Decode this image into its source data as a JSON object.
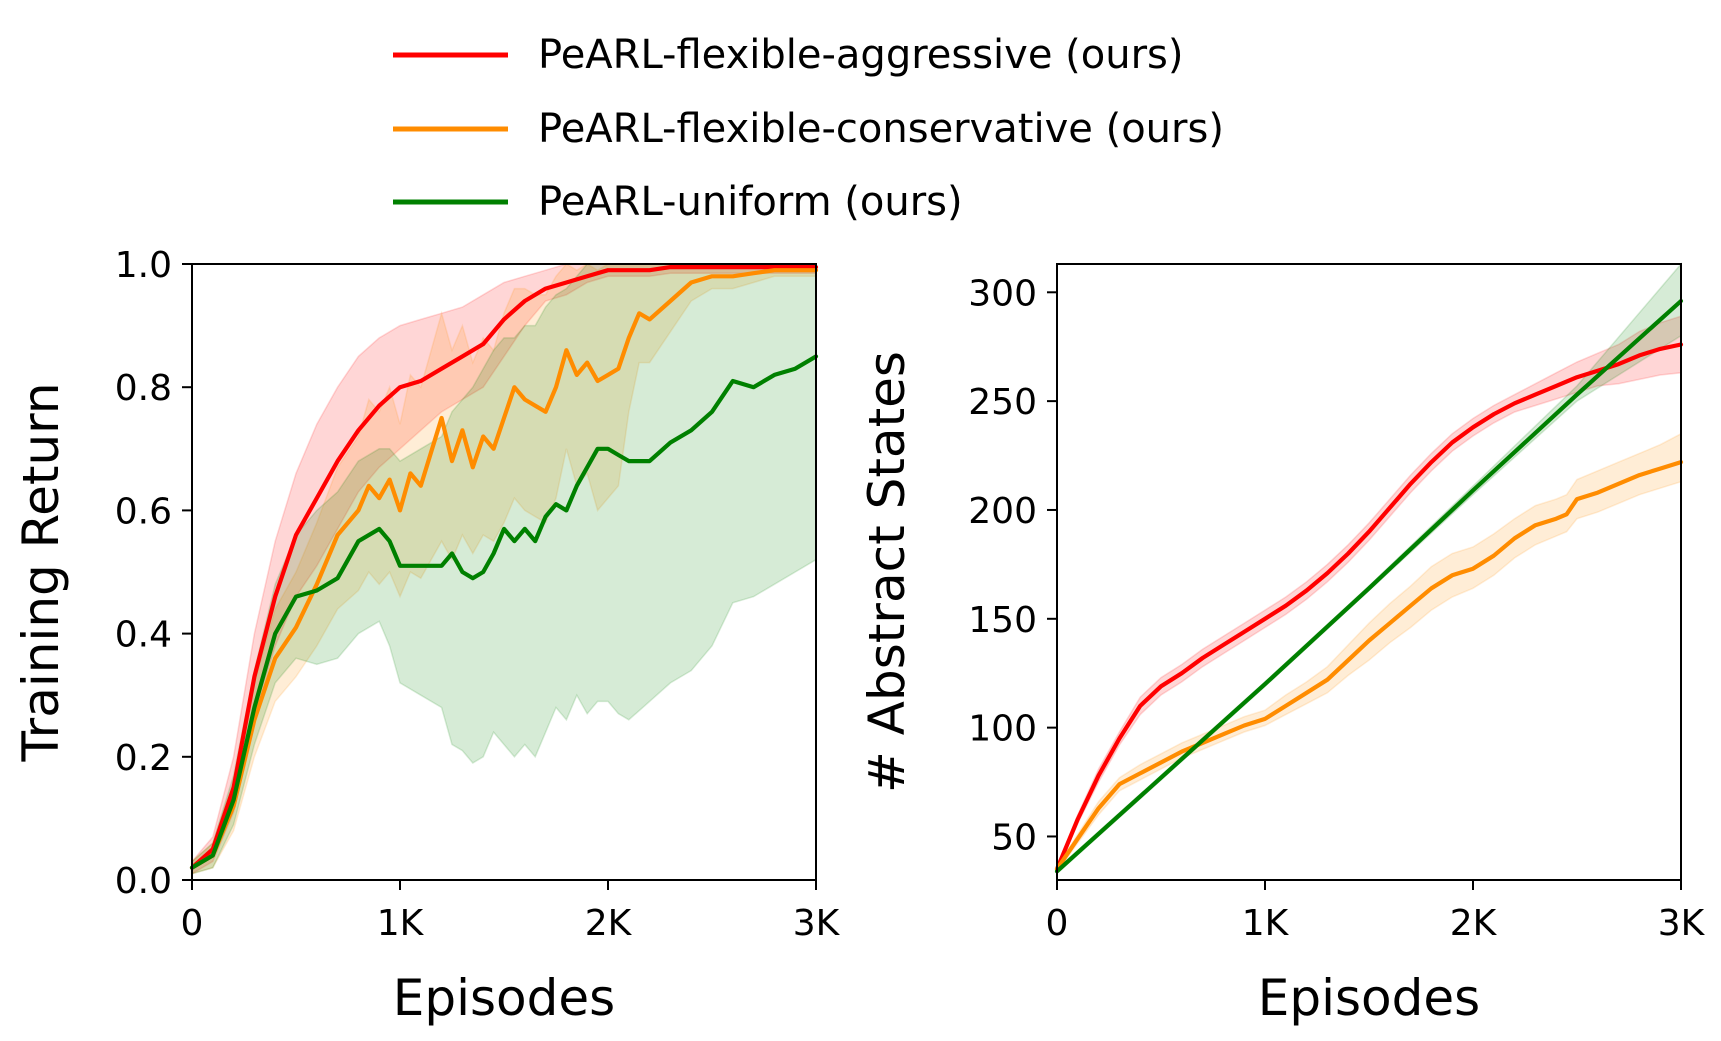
{
  "legend": {
    "placement": "top-center",
    "entries": [
      {
        "label": "PeARL-flexible-aggressive (ours)",
        "color": "#ff0000"
      },
      {
        "label": "PeARL-flexible-conservative (ours)",
        "color": "#ff8c00"
      },
      {
        "label": "PeARL-uniform (ours)",
        "color": "#008000"
      }
    ]
  },
  "chart_data": [
    {
      "type": "line",
      "xlabel": "Episodes",
      "ylabel": "Training Return",
      "xlim": [
        0,
        3000
      ],
      "ylim": [
        0,
        1.0
      ],
      "x_ticks": [
        {
          "value": 0,
          "label": "0"
        },
        {
          "value": 1000,
          "label": "1K"
        },
        {
          "value": 2000,
          "label": "2K"
        },
        {
          "value": 3000,
          "label": "3K"
        }
      ],
      "y_ticks": [
        {
          "value": 0,
          "label": "0.0"
        },
        {
          "value": 0.2,
          "label": "0.2"
        },
        {
          "value": 0.4,
          "label": "0.4"
        },
        {
          "value": 0.6,
          "label": "0.6"
        },
        {
          "value": 0.8,
          "label": "0.8"
        },
        {
          "value": 1.0,
          "label": "1.0"
        }
      ],
      "grid": false,
      "series": [
        {
          "name": "PeARL-flexible-aggressive (ours)",
          "color": "#ff0000",
          "x": [
            0,
            100,
            200,
            300,
            400,
            500,
            600,
            700,
            800,
            900,
            1000,
            1100,
            1200,
            1300,
            1400,
            1500,
            1600,
            1700,
            1800,
            1900,
            2000,
            2100,
            2200,
            2300,
            2400,
            2500,
            2600,
            2700,
            2800,
            2900,
            3000
          ],
          "y": [
            0.02,
            0.05,
            0.15,
            0.33,
            0.46,
            0.56,
            0.62,
            0.68,
            0.73,
            0.77,
            0.8,
            0.81,
            0.83,
            0.85,
            0.87,
            0.91,
            0.94,
            0.96,
            0.97,
            0.98,
            0.99,
            0.99,
            0.99,
            0.995,
            0.995,
            0.995,
            0.995,
            0.995,
            0.995,
            0.995,
            0.995
          ],
          "lower": [
            0.01,
            0.03,
            0.11,
            0.27,
            0.38,
            0.46,
            0.51,
            0.57,
            0.63,
            0.67,
            0.7,
            0.73,
            0.76,
            0.78,
            0.8,
            0.85,
            0.9,
            0.94,
            0.95,
            0.97,
            0.98,
            0.98,
            0.98,
            0.985,
            0.985,
            0.985,
            0.985,
            0.985,
            0.985,
            0.985,
            0.985
          ],
          "upper": [
            0.03,
            0.07,
            0.2,
            0.4,
            0.55,
            0.66,
            0.74,
            0.8,
            0.85,
            0.88,
            0.9,
            0.91,
            0.92,
            0.93,
            0.95,
            0.97,
            0.98,
            0.99,
            1.0,
            1.0,
            1.0,
            1.0,
            1.0,
            1.0,
            1.0,
            1.0,
            1.0,
            1.0,
            1.0,
            1.0,
            1.0
          ]
        },
        {
          "name": "PeARL-flexible-conservative (ours)",
          "color": "#ff8c00",
          "x": [
            0,
            100,
            200,
            300,
            400,
            500,
            600,
            700,
            800,
            850,
            900,
            950,
            1000,
            1050,
            1100,
            1200,
            1250,
            1300,
            1350,
            1400,
            1450,
            1500,
            1550,
            1600,
            1650,
            1700,
            1750,
            1800,
            1850,
            1900,
            1950,
            2000,
            2050,
            2100,
            2150,
            2200,
            2300,
            2400,
            2500,
            2600,
            2700,
            2800,
            2900,
            3000
          ],
          "y": [
            0.02,
            0.04,
            0.12,
            0.26,
            0.36,
            0.41,
            0.48,
            0.56,
            0.6,
            0.64,
            0.62,
            0.65,
            0.6,
            0.66,
            0.64,
            0.75,
            0.68,
            0.73,
            0.67,
            0.72,
            0.7,
            0.75,
            0.8,
            0.78,
            0.77,
            0.76,
            0.8,
            0.86,
            0.82,
            0.84,
            0.81,
            0.82,
            0.83,
            0.88,
            0.92,
            0.91,
            0.94,
            0.97,
            0.98,
            0.98,
            0.985,
            0.99,
            0.99,
            0.99
          ],
          "lower": [
            0.01,
            0.02,
            0.08,
            0.2,
            0.29,
            0.33,
            0.38,
            0.44,
            0.47,
            0.5,
            0.48,
            0.5,
            0.46,
            0.5,
            0.49,
            0.55,
            0.52,
            0.56,
            0.53,
            0.56,
            0.55,
            0.58,
            0.62,
            0.6,
            0.59,
            0.58,
            0.62,
            0.7,
            0.64,
            0.66,
            0.6,
            0.62,
            0.64,
            0.76,
            0.84,
            0.84,
            0.89,
            0.94,
            0.96,
            0.96,
            0.97,
            0.98,
            0.98,
            0.98
          ],
          "upper": [
            0.03,
            0.06,
            0.16,
            0.32,
            0.44,
            0.5,
            0.58,
            0.67,
            0.72,
            0.78,
            0.76,
            0.8,
            0.74,
            0.82,
            0.8,
            0.92,
            0.86,
            0.9,
            0.84,
            0.88,
            0.86,
            0.92,
            0.96,
            0.96,
            0.95,
            0.95,
            0.98,
            1.0,
            0.99,
            1.0,
            0.99,
            1.0,
            1.0,
            1.0,
            1.0,
            1.0,
            1.0,
            1.0,
            1.0,
            1.0,
            1.0,
            1.0,
            1.0,
            1.0
          ]
        },
        {
          "name": "PeARL-uniform (ours)",
          "color": "#008000",
          "x": [
            0,
            100,
            200,
            300,
            400,
            500,
            600,
            700,
            800,
            900,
            950,
            1000,
            1100,
            1200,
            1250,
            1300,
            1350,
            1400,
            1450,
            1500,
            1550,
            1600,
            1650,
            1700,
            1750,
            1800,
            1850,
            1900,
            1950,
            2000,
            2050,
            2100,
            2200,
            2300,
            2400,
            2500,
            2600,
            2700,
            2800,
            2900,
            3000
          ],
          "y": [
            0.02,
            0.04,
            0.13,
            0.28,
            0.4,
            0.46,
            0.47,
            0.49,
            0.55,
            0.57,
            0.55,
            0.51,
            0.51,
            0.51,
            0.53,
            0.5,
            0.49,
            0.5,
            0.53,
            0.57,
            0.55,
            0.57,
            0.55,
            0.59,
            0.61,
            0.6,
            0.64,
            0.67,
            0.7,
            0.7,
            0.69,
            0.68,
            0.68,
            0.71,
            0.73,
            0.76,
            0.81,
            0.8,
            0.82,
            0.83,
            0.85
          ],
          "lower": [
            0.01,
            0.02,
            0.09,
            0.22,
            0.32,
            0.36,
            0.35,
            0.36,
            0.4,
            0.42,
            0.38,
            0.32,
            0.3,
            0.28,
            0.22,
            0.21,
            0.19,
            0.2,
            0.24,
            0.22,
            0.2,
            0.22,
            0.2,
            0.24,
            0.28,
            0.26,
            0.3,
            0.27,
            0.29,
            0.29,
            0.27,
            0.26,
            0.29,
            0.32,
            0.34,
            0.38,
            0.45,
            0.46,
            0.48,
            0.5,
            0.52
          ],
          "upper": [
            0.03,
            0.06,
            0.17,
            0.34,
            0.48,
            0.56,
            0.6,
            0.63,
            0.68,
            0.7,
            0.7,
            0.68,
            0.7,
            0.72,
            0.76,
            0.78,
            0.8,
            0.83,
            0.86,
            0.88,
            0.88,
            0.9,
            0.9,
            0.93,
            0.95,
            0.96,
            0.98,
            1.0,
            1.0,
            1.0,
            1.0,
            1.0,
            1.0,
            1.0,
            1.0,
            1.0,
            1.0,
            1.0,
            1.0,
            1.0,
            1.0
          ]
        }
      ]
    },
    {
      "type": "line",
      "xlabel": "Episodes",
      "ylabel": "# Abstract States",
      "xlim": [
        0,
        3000
      ],
      "ylim": [
        30,
        313
      ],
      "x_ticks": [
        {
          "value": 0,
          "label": "0"
        },
        {
          "value": 1000,
          "label": "1K"
        },
        {
          "value": 2000,
          "label": "2K"
        },
        {
          "value": 3000,
          "label": "3K"
        }
      ],
      "y_ticks": [
        {
          "value": 50,
          "label": "50"
        },
        {
          "value": 100,
          "label": "100"
        },
        {
          "value": 150,
          "label": "150"
        },
        {
          "value": 200,
          "label": "200"
        },
        {
          "value": 250,
          "label": "250"
        },
        {
          "value": 300,
          "label": "300"
        }
      ],
      "grid": false,
      "series": [
        {
          "name": "PeARL-flexible-aggressive (ours)",
          "color": "#ff0000",
          "x": [
            0,
            100,
            200,
            300,
            400,
            500,
            600,
            700,
            800,
            900,
            1000,
            1100,
            1200,
            1300,
            1400,
            1500,
            1600,
            1700,
            1800,
            1900,
            2000,
            2100,
            2200,
            2300,
            2400,
            2500,
            2600,
            2700,
            2800,
            2900,
            3000
          ],
          "y": [
            35,
            58,
            78,
            95,
            110,
            119,
            125,
            132,
            138,
            144,
            150,
            156,
            163,
            171,
            180,
            190,
            201,
            212,
            222,
            231,
            238,
            244,
            249,
            253,
            257,
            261,
            264,
            267,
            271,
            274,
            276
          ],
          "lower": [
            34,
            56,
            75,
            92,
            106,
            115,
            121,
            128,
            134,
            140,
            146,
            152,
            159,
            167,
            176,
            186,
            197,
            208,
            218,
            227,
            234,
            240,
            245,
            248,
            251,
            254,
            257,
            258,
            260,
            262,
            263
          ],
          "upper": [
            36,
            60,
            81,
            98,
            114,
            123,
            129,
            136,
            142,
            148,
            154,
            160,
            167,
            175,
            184,
            194,
            205,
            216,
            226,
            235,
            242,
            248,
            253,
            258,
            263,
            268,
            272,
            276,
            282,
            286,
            289
          ]
        },
        {
          "name": "PeARL-flexible-conservative (ours)",
          "color": "#ff8c00",
          "x": [
            0,
            100,
            200,
            300,
            400,
            500,
            600,
            700,
            800,
            900,
            1000,
            1100,
            1200,
            1300,
            1400,
            1500,
            1600,
            1700,
            1800,
            1900,
            2000,
            2100,
            2200,
            2300,
            2400,
            2450,
            2500,
            2600,
            2700,
            2800,
            2900,
            3000
          ],
          "y": [
            35,
            49,
            63,
            74,
            79,
            84,
            89,
            93,
            97,
            101,
            104,
            110,
            116,
            122,
            131,
            140,
            148,
            156,
            164,
            170,
            173,
            179,
            187,
            193,
            196,
            198,
            205,
            208,
            212,
            216,
            219,
            222
          ],
          "lower": [
            34,
            47,
            60,
            71,
            76,
            81,
            86,
            90,
            94,
            98,
            101,
            106,
            111,
            116,
            124,
            131,
            139,
            146,
            154,
            160,
            164,
            170,
            178,
            184,
            188,
            190,
            196,
            199,
            203,
            207,
            210,
            213
          ],
          "upper": [
            36,
            51,
            66,
            77,
            83,
            88,
            93,
            97,
            101,
            105,
            108,
            115,
            121,
            128,
            138,
            148,
            157,
            165,
            174,
            180,
            183,
            189,
            196,
            202,
            205,
            207,
            214,
            218,
            222,
            226,
            230,
            235
          ]
        },
        {
          "name": "PeARL-uniform (ours)",
          "color": "#008000",
          "x": [
            0,
            500,
            1000,
            1500,
            2000,
            2500,
            3000
          ],
          "y": [
            34,
            77,
            120,
            164,
            209,
            253,
            296
          ],
          "lower": [
            33,
            76,
            119,
            163,
            207,
            250,
            280
          ],
          "upper": [
            35,
            78,
            121,
            165,
            211,
            257,
            313
          ]
        }
      ]
    }
  ]
}
